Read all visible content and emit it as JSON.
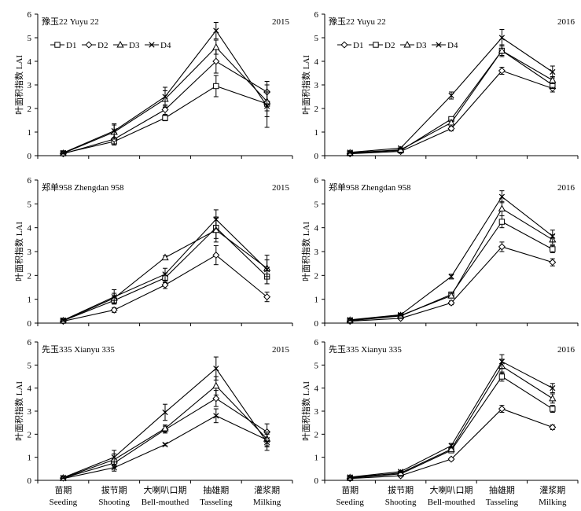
{
  "figure": {
    "ylabel": "叶面积指数 LAI",
    "xlabels_cn": [
      "苗期",
      "拔节期",
      "大喇叭口期",
      "抽雄期",
      "灌浆期"
    ],
    "xlabels_en": [
      "Seeding",
      "Shooting",
      "Bell-mouthed",
      "Tasseling",
      "Milking"
    ],
    "yticks": [
      "0",
      "1",
      "2",
      "3",
      "4",
      "5",
      "6"
    ]
  },
  "chart_data": [
    {
      "type": "line",
      "title": "豫玉22 Yuyu 22",
      "year": "2015",
      "categories": [
        "Seeding",
        "Shooting",
        "Bell-mouthed",
        "Tasseling",
        "Milking"
      ],
      "ylim": [
        0,
        6
      ],
      "legend": {
        "placement": "top-left",
        "entries": [
          "D1",
          "D2",
          "D3",
          "D4"
        ]
      },
      "series": [
        {
          "name": "D1",
          "marker": "square",
          "values": [
            0.1,
            0.6,
            1.6,
            2.95,
            2.2
          ],
          "errors": [
            0.05,
            0.15,
            0.12,
            0.45,
            0.55
          ]
        },
        {
          "name": "D2",
          "marker": "diamond",
          "values": [
            0.08,
            0.7,
            1.95,
            4.0,
            2.7
          ],
          "errors": [
            0.05,
            0.2,
            0.2,
            0.5,
            0.45
          ]
        },
        {
          "name": "D3",
          "marker": "triangle",
          "values": [
            0.1,
            1.0,
            2.4,
            4.6,
            2.3
          ],
          "errors": [
            0.05,
            0.3,
            0.35,
            0.3,
            0.4
          ]
        },
        {
          "name": "D4",
          "marker": "x",
          "values": [
            0.12,
            1.05,
            2.5,
            5.3,
            2.1
          ],
          "errors": [
            0.05,
            0.3,
            0.4,
            0.35,
            0.9
          ]
        }
      ]
    },
    {
      "type": "line",
      "title": "豫玉22 Yuyu 22",
      "year": "2016",
      "categories": [
        "Seeding",
        "Shooting",
        "Bell-mouthed",
        "Tasseling",
        "Milking"
      ],
      "ylim": [
        0,
        6
      ],
      "legend": {
        "placement": "top-left",
        "entries": [
          "D1",
          "D2",
          "D3",
          "D4"
        ]
      },
      "series": [
        {
          "name": "D1",
          "marker": "diamond",
          "values": [
            0.08,
            0.18,
            1.15,
            3.6,
            2.85
          ],
          "errors": [
            0.04,
            0.05,
            0.1,
            0.15,
            0.15
          ]
        },
        {
          "name": "D2",
          "marker": "square",
          "values": [
            0.1,
            0.22,
            1.55,
            4.45,
            3.0
          ],
          "errors": [
            0.04,
            0.05,
            0.1,
            0.2,
            0.15
          ]
        },
        {
          "name": "D3",
          "marker": "triangle",
          "values": [
            0.12,
            0.25,
            1.4,
            4.45,
            3.2
          ],
          "errors": [
            0.04,
            0.05,
            0.1,
            0.25,
            0.15
          ]
        },
        {
          "name": "D4",
          "marker": "x",
          "values": [
            0.14,
            0.32,
            2.55,
            5.0,
            3.55
          ],
          "errors": [
            0.04,
            0.05,
            0.15,
            0.35,
            0.25
          ]
        }
      ]
    },
    {
      "type": "line",
      "title": "郑单958 Zhengdan 958",
      "year": "2015",
      "categories": [
        "Seeding",
        "Shooting",
        "Bell-mouthed",
        "Tasseling",
        "Milking"
      ],
      "ylim": [
        0,
        6
      ],
      "legend": null,
      "series": [
        {
          "name": "D1",
          "marker": "diamond",
          "values": [
            0.08,
            0.55,
            1.6,
            2.85,
            1.1
          ],
          "errors": [
            0.04,
            0.1,
            0.15,
            0.4,
            0.2
          ]
        },
        {
          "name": "D2",
          "marker": "square",
          "values": [
            0.1,
            0.95,
            1.9,
            4.0,
            1.95
          ],
          "errors": [
            0.04,
            0.15,
            0.2,
            0.45,
            0.3
          ]
        },
        {
          "name": "D3",
          "marker": "triangle",
          "values": [
            0.1,
            1.05,
            2.75,
            3.9,
            2.3
          ],
          "errors": [
            0.04,
            0.2,
            0.08,
            0.5,
            0.35
          ]
        },
        {
          "name": "D4",
          "marker": "x",
          "values": [
            0.12,
            1.1,
            2.05,
            4.35,
            2.25
          ],
          "errors": [
            0.04,
            0.3,
            0.25,
            0.4,
            0.6
          ]
        }
      ]
    },
    {
      "type": "line",
      "title": "郑单958 Zhengdan 958",
      "year": "2016",
      "categories": [
        "Seeding",
        "Shooting",
        "Bell-mouthed",
        "Tasseling",
        "Milking"
      ],
      "ylim": [
        0,
        6
      ],
      "legend": null,
      "series": [
        {
          "name": "D1",
          "marker": "diamond",
          "values": [
            0.08,
            0.2,
            0.85,
            3.2,
            2.55
          ],
          "errors": [
            0.04,
            0.05,
            0.08,
            0.2,
            0.15
          ]
        },
        {
          "name": "D2",
          "marker": "square",
          "values": [
            0.1,
            0.3,
            1.2,
            4.25,
            3.1
          ],
          "errors": [
            0.04,
            0.05,
            0.1,
            0.25,
            0.15
          ]
        },
        {
          "name": "D3",
          "marker": "triangle",
          "values": [
            0.12,
            0.32,
            1.15,
            4.8,
            3.5
          ],
          "errors": [
            0.04,
            0.05,
            0.1,
            0.3,
            0.2
          ]
        },
        {
          "name": "D4",
          "marker": "x",
          "values": [
            0.14,
            0.35,
            1.95,
            5.3,
            3.65
          ],
          "errors": [
            0.04,
            0.05,
            0.1,
            0.25,
            0.25
          ]
        }
      ]
    },
    {
      "type": "line",
      "title": "先玉335 Xianyu 335",
      "year": "2015",
      "categories": [
        "Seeding",
        "Shooting",
        "Bell-mouthed",
        "Tasseling",
        "Milking"
      ],
      "ylim": [
        0,
        6
      ],
      "legend": null,
      "series": [
        {
          "name": "D1",
          "marker": "x",
          "values": [
            0.08,
            0.55,
            1.55,
            2.8,
            1.75
          ],
          "errors": [
            0.04,
            0.15,
            0.05,
            0.3,
            0.3
          ]
        },
        {
          "name": "D2",
          "marker": "diamond",
          "values": [
            0.1,
            0.75,
            2.2,
            3.55,
            2.1
          ],
          "errors": [
            0.04,
            0.2,
            0.15,
            0.35,
            0.35
          ]
        },
        {
          "name": "D3",
          "marker": "triangle",
          "values": [
            0.1,
            0.9,
            2.25,
            4.1,
            1.8
          ],
          "errors": [
            0.04,
            0.25,
            0.15,
            0.4,
            0.3
          ]
        },
        {
          "name": "D4",
          "marker": "x",
          "values": [
            0.12,
            1.0,
            2.95,
            4.85,
            1.65
          ],
          "errors": [
            0.04,
            0.3,
            0.35,
            0.5,
            0.35
          ]
        }
      ]
    },
    {
      "type": "line",
      "title": "先玉335 Xianyu 335",
      "year": "2016",
      "categories": [
        "Seeding",
        "Shooting",
        "Bell-mouthed",
        "Tasseling",
        "Milking"
      ],
      "ylim": [
        0,
        6
      ],
      "legend": null,
      "series": [
        {
          "name": "D1",
          "marker": "diamond",
          "values": [
            0.08,
            0.2,
            0.92,
            3.1,
            2.3
          ],
          "errors": [
            0.04,
            0.05,
            0.06,
            0.15,
            0.1
          ]
        },
        {
          "name": "D2",
          "marker": "square",
          "values": [
            0.1,
            0.28,
            1.3,
            4.5,
            3.1
          ],
          "errors": [
            0.04,
            0.05,
            0.08,
            0.2,
            0.15
          ]
        },
        {
          "name": "D3",
          "marker": "triangle",
          "values": [
            0.12,
            0.32,
            1.35,
            4.95,
            3.55
          ],
          "errors": [
            0.04,
            0.05,
            0.08,
            0.3,
            0.2
          ]
        },
        {
          "name": "D4",
          "marker": "x",
          "values": [
            0.14,
            0.38,
            1.5,
            5.15,
            4.0
          ],
          "errors": [
            0.04,
            0.05,
            0.1,
            0.3,
            0.2
          ]
        }
      ]
    }
  ]
}
